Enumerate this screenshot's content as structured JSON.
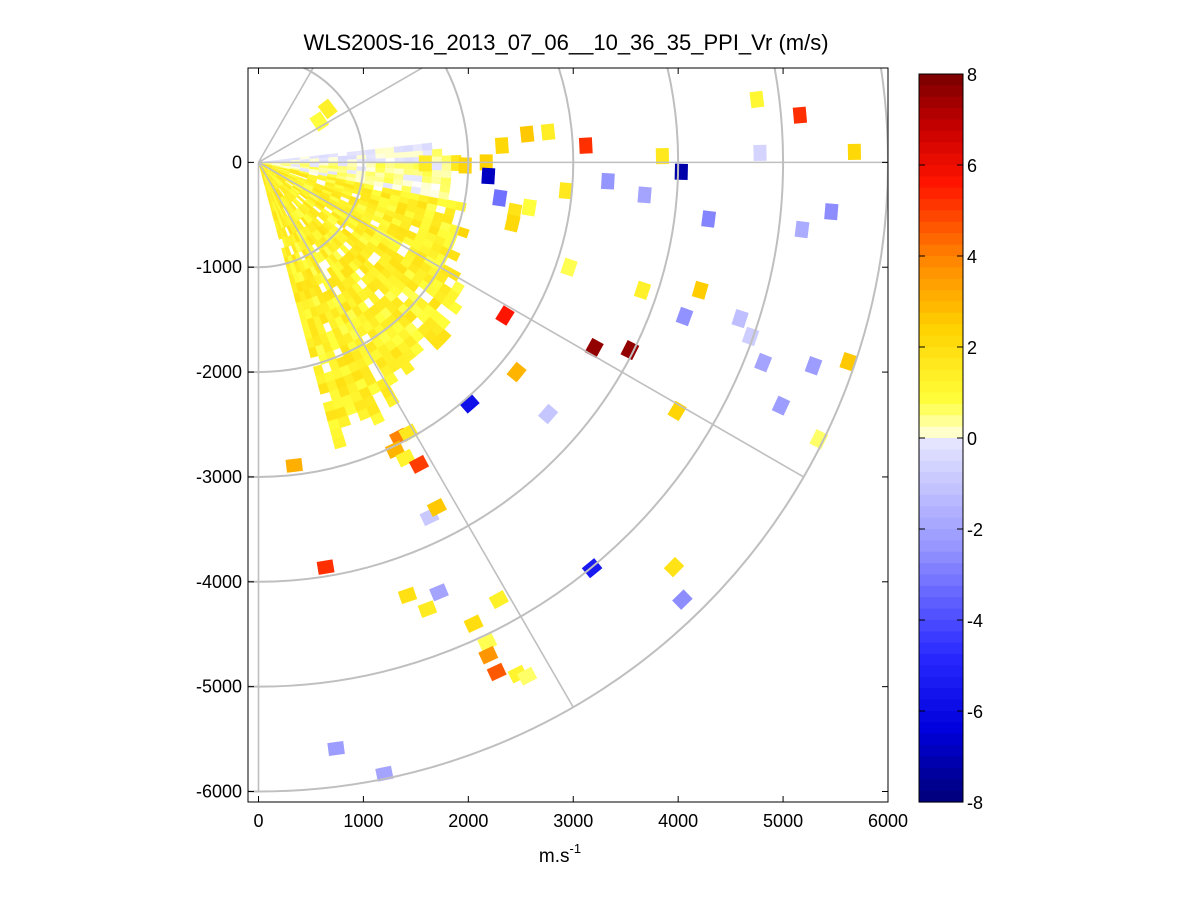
{
  "chart_data": {
    "type": "heatmap",
    "plot_kind": "PPI polar scan (radial velocity)",
    "title": "WLS200S-16_2013_07_06__10_36_35_PPI_Vr (m/s)",
    "xlabel": "m.s",
    "xlabel_superscript": "-1",
    "ylabel": "",
    "xlim": [
      -100,
      6000
    ],
    "ylim": [
      -6100,
      900
    ],
    "x_ticks": [
      "0",
      "1000",
      "2000",
      "3000",
      "4000",
      "5000",
      "6000"
    ],
    "y_ticks": [
      "-6000",
      "-5000",
      "-4000",
      "-3000",
      "-2000",
      "-1000",
      "0"
    ],
    "x_tick_values": [
      0,
      1000,
      2000,
      3000,
      4000,
      5000,
      6000
    ],
    "y_tick_values": [
      -6000,
      -5000,
      -4000,
      -3000,
      -2000,
      -1000,
      0
    ],
    "range_rings": [
      1000,
      2000,
      3000,
      4000,
      5000,
      6000
    ],
    "azimuth_spokes_deg": [
      60,
      30,
      0,
      -30,
      -60,
      -90
    ],
    "grid": true,
    "colorbar": {
      "min": -8,
      "max": 8,
      "ticks": [
        "8",
        "6",
        "4",
        "2",
        "0",
        "-2",
        "-4",
        "-6",
        "-8"
      ],
      "tick_values": [
        8,
        6,
        4,
        2,
        0,
        -2,
        -4,
        -6,
        -8
      ],
      "colormap": "blue-white-yellow-red"
    },
    "dense_sector": {
      "azimuth_from_deg": -75,
      "azimuth_to_deg": 5,
      "max_range": 2800,
      "typical_velocity": 1.3
    },
    "points": [
      {
        "x": 580,
        "y": 390,
        "v": 0.8
      },
      {
        "x": 660,
        "y": 510,
        "v": 1.3
      },
      {
        "x": 1590,
        "y": -10,
        "v": 1.5
      },
      {
        "x": 1970,
        "y": -30,
        "v": 2.3
      },
      {
        "x": 2170,
        "y": 0,
        "v": 2.4
      },
      {
        "x": 2320,
        "y": 160,
        "v": 2.2
      },
      {
        "x": 2560,
        "y": 270,
        "v": 2.6
      },
      {
        "x": 2760,
        "y": 290,
        "v": 1.4
      },
      {
        "x": 3120,
        "y": 160,
        "v": 5.2
      },
      {
        "x": 3850,
        "y": 60,
        "v": 1.6
      },
      {
        "x": 4030,
        "y": -90,
        "v": -7.2
      },
      {
        "x": 4750,
        "y": 600,
        "v": 1.1
      },
      {
        "x": 4780,
        "y": 90,
        "v": -0.6
      },
      {
        "x": 5160,
        "y": 450,
        "v": 5.2
      },
      {
        "x": 5680,
        "y": 100,
        "v": 2.2
      },
      {
        "x": 2190,
        "y": -130,
        "v": -6.8
      },
      {
        "x": 2300,
        "y": -340,
        "v": -3.2
      },
      {
        "x": 2440,
        "y": -470,
        "v": 1.8
      },
      {
        "x": 2580,
        "y": -430,
        "v": 0.8
      },
      {
        "x": 2420,
        "y": -580,
        "v": 2.2
      },
      {
        "x": 2930,
        "y": -270,
        "v": 1.6
      },
      {
        "x": 3330,
        "y": -180,
        "v": -2.4
      },
      {
        "x": 3680,
        "y": -310,
        "v": -2.0
      },
      {
        "x": 4290,
        "y": -540,
        "v": -2.8
      },
      {
        "x": 5180,
        "y": -640,
        "v": -1.8
      },
      {
        "x": 5460,
        "y": -470,
        "v": -2.6
      },
      {
        "x": 2960,
        "y": -1000,
        "v": 0.7
      },
      {
        "x": 3660,
        "y": -1220,
        "v": 1.3
      },
      {
        "x": 4210,
        "y": -1220,
        "v": 2.5
      },
      {
        "x": 2350,
        "y": -1460,
        "v": 5.6
      },
      {
        "x": 3200,
        "y": -1770,
        "v": 7.6
      },
      {
        "x": 3540,
        "y": -1790,
        "v": 7.6
      },
      {
        "x": 4060,
        "y": -1470,
        "v": -2.5
      },
      {
        "x": 4590,
        "y": -1490,
        "v": -1.2
      },
      {
        "x": 4690,
        "y": -1660,
        "v": -0.8
      },
      {
        "x": 4810,
        "y": -1910,
        "v": -2.0
      },
      {
        "x": 5290,
        "y": -1940,
        "v": -2.2
      },
      {
        "x": 5620,
        "y": -1900,
        "v": 2.6
      },
      {
        "x": 2460,
        "y": -2000,
        "v": 3.0
      },
      {
        "x": 2010,
        "y": -2300,
        "v": -5.8
      },
      {
        "x": 2760,
        "y": -2400,
        "v": -1.0
      },
      {
        "x": 3990,
        "y": -2370,
        "v": 2.3
      },
      {
        "x": 4980,
        "y": -2320,
        "v": -2.2
      },
      {
        "x": 5340,
        "y": -2640,
        "v": 0.6
      },
      {
        "x": 1340,
        "y": -2620,
        "v": 4.0
      },
      {
        "x": 1430,
        "y": -2580,
        "v": 1.6
      },
      {
        "x": 1300,
        "y": -2740,
        "v": 3.0
      },
      {
        "x": 1400,
        "y": -2820,
        "v": 1.2
      },
      {
        "x": 1530,
        "y": -2880,
        "v": 5.0
      },
      {
        "x": 340,
        "y": -2890,
        "v": 3.1
      },
      {
        "x": 1630,
        "y": -3380,
        "v": -0.9
      },
      {
        "x": 1700,
        "y": -3290,
        "v": 2.6
      },
      {
        "x": 3180,
        "y": -3870,
        "v": -5.4
      },
      {
        "x": 3960,
        "y": -3860,
        "v": 1.8
      },
      {
        "x": 4040,
        "y": -4170,
        "v": -2.6
      },
      {
        "x": 640,
        "y": -3860,
        "v": 5.2
      },
      {
        "x": 1420,
        "y": -4130,
        "v": 1.9
      },
      {
        "x": 1720,
        "y": -4100,
        "v": -2.0
      },
      {
        "x": 1610,
        "y": -4260,
        "v": 1.5
      },
      {
        "x": 2290,
        "y": -4170,
        "v": 1.3
      },
      {
        "x": 2050,
        "y": -4400,
        "v": 2.0
      },
      {
        "x": 2180,
        "y": -4580,
        "v": 0.7
      },
      {
        "x": 2190,
        "y": -4700,
        "v": 3.6
      },
      {
        "x": 2270,
        "y": -4860,
        "v": 4.6
      },
      {
        "x": 2470,
        "y": -4880,
        "v": 1.2
      },
      {
        "x": 2560,
        "y": -4900,
        "v": 0.6
      },
      {
        "x": 740,
        "y": -5590,
        "v": -2.2
      },
      {
        "x": 1200,
        "y": -5830,
        "v": -2.0
      }
    ]
  }
}
